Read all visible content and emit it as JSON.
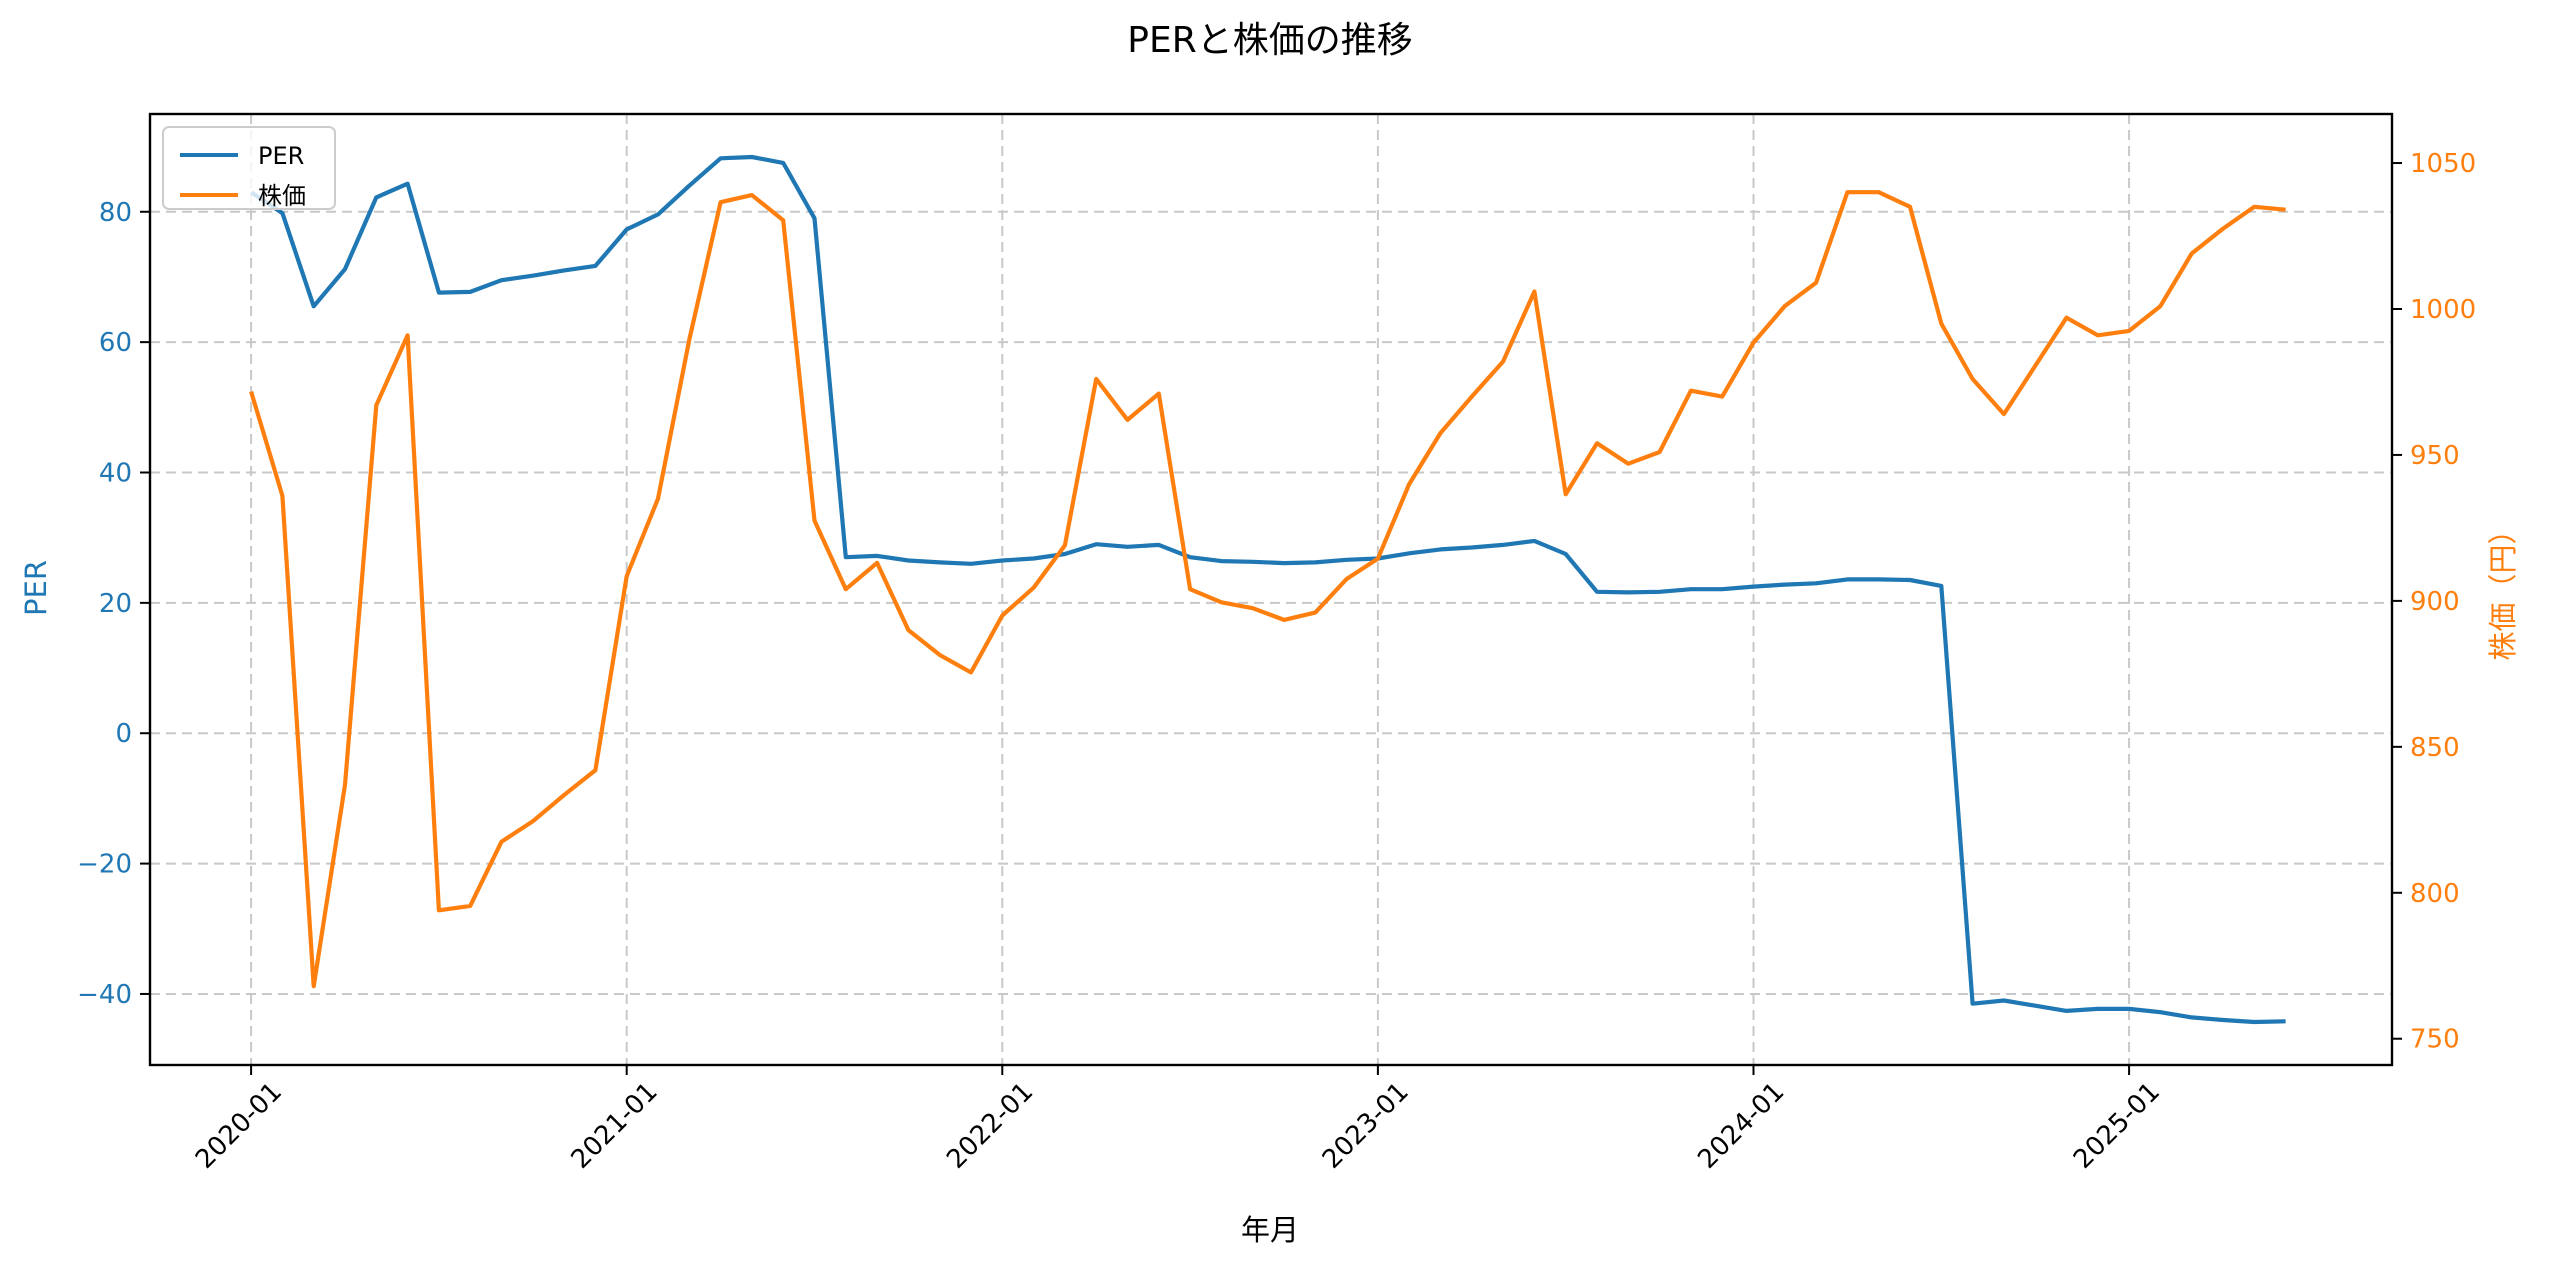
{
  "chart_data": {
    "type": "line",
    "title": "PERと株価の推移",
    "xlabel": "年月",
    "ylabel_left": "PER",
    "ylabel_right": "株価（円）",
    "x_tick_labels": [
      "2020-01",
      "2021-01",
      "2022-01",
      "2023-01",
      "2024-01",
      "2025-01"
    ],
    "x_tick_month_index": [
      0,
      12,
      24,
      36,
      48,
      60
    ],
    "x_start": "2020-01",
    "xlim_month_index": [
      -3.23,
      68.4
    ],
    "y_left_ticks": [
      -40,
      -20,
      0,
      20,
      40,
      60,
      80
    ],
    "y_left_lim": [
      -50.9,
      95
    ],
    "y_right_ticks": [
      750,
      800,
      850,
      900,
      950,
      1000,
      1050
    ],
    "y_right_lim": [
      741,
      1066.8
    ],
    "grid": true,
    "legend_position": "top-left",
    "series": [
      {
        "name": "PER",
        "axis": "left",
        "color": "#1f77b4",
        "values": [
          83,
          79.8,
          65.5,
          71.2,
          82.2,
          84.3,
          67.6,
          67.7,
          69.5,
          70.2,
          71,
          71.7,
          77.3,
          79.6,
          84,
          88.2,
          88.4,
          87.5,
          79,
          27,
          27.2,
          26.5,
          26.2,
          26,
          26.5,
          26.8,
          27.5,
          29,
          28.6,
          28.9,
          27,
          26.4,
          26.3,
          26.1,
          26.2,
          26.6,
          26.8,
          27.6,
          28.2,
          28.5,
          28.9,
          29.5,
          27.5,
          21.7,
          21.6,
          21.7,
          22.1,
          22.1,
          22.5,
          22.8,
          23,
          23.6,
          23.6,
          23.5,
          22.6,
          -41.5,
          -41,
          -41.8,
          -42.6,
          -42.3,
          -42.3,
          -42.8,
          -43.6,
          -44,
          -44.3,
          -44.2
        ]
      },
      {
        "name": "株価",
        "axis": "right",
        "color": "#ff7f0e",
        "values": [
          971.7,
          936,
          768,
          837,
          967,
          991,
          794,
          795.5,
          817.5,
          824.5,
          833.5,
          842,
          908.5,
          935,
          989.5,
          1036.6,
          1039,
          1030.4,
          927.5,
          904,
          913,
          890,
          881.5,
          875.5,
          895,
          904.5,
          919,
          976,
          962,
          971,
          904,
          899.5,
          897.5,
          893.5,
          896,
          907.5,
          914.5,
          940,
          957.5,
          970,
          982,
          1006,
          936.5,
          954,
          947,
          951,
          972,
          970,
          988.5,
          1001,
          1009,
          1040,
          1040,
          1035,
          995,
          976,
          964,
          980.5,
          997,
          991,
          992.5,
          1001,
          1019,
          1027.5,
          1035,
          1034
        ]
      }
    ]
  }
}
